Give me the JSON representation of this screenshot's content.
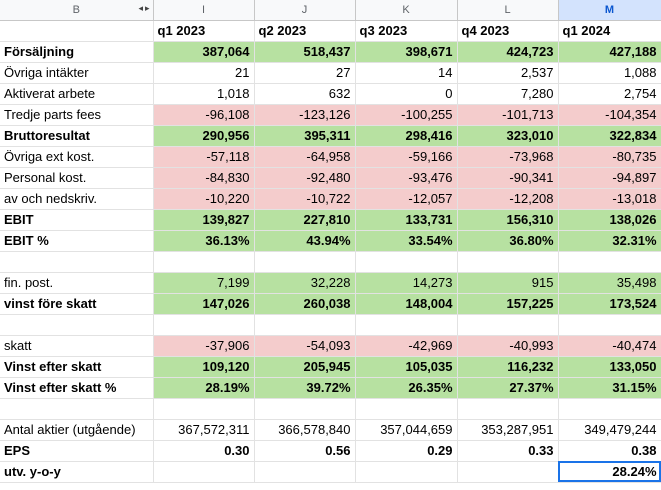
{
  "columns": [
    "B",
    "I",
    "J",
    "K",
    "L",
    "M"
  ],
  "quarters": [
    "q1 2023",
    "q2 2023",
    "q3 2023",
    "q4 2023",
    "q1 2024"
  ],
  "rows": [
    {
      "label": "Försäljning",
      "bold": true,
      "fill": "green",
      "values": [
        "387,064",
        "518,437",
        "398,671",
        "424,723",
        "427,188"
      ]
    },
    {
      "label": "Övriga intäkter",
      "bold": false,
      "fill": "none",
      "values": [
        "21",
        "27",
        "14",
        "2,537",
        "1,088"
      ]
    },
    {
      "label": "Aktiverat arbete",
      "bold": false,
      "fill": "none",
      "values": [
        "1,018",
        "632",
        "0",
        "7,280",
        "2,754"
      ]
    },
    {
      "label": "Tredje parts fees",
      "bold": false,
      "fill": "red",
      "values": [
        "-96,108",
        "-123,126",
        "-100,255",
        "-101,713",
        "-104,354"
      ]
    },
    {
      "label": "Bruttoresultat",
      "bold": true,
      "fill": "green",
      "values": [
        "290,956",
        "395,311",
        "298,416",
        "323,010",
        "322,834"
      ]
    },
    {
      "label": "Övriga ext kost.",
      "bold": false,
      "fill": "red",
      "values": [
        "-57,118",
        "-64,958",
        "-59,166",
        "-73,968",
        "-80,735"
      ]
    },
    {
      "label": "Personal kost.",
      "bold": false,
      "fill": "red",
      "values": [
        "-84,830",
        "-92,480",
        "-93,476",
        "-90,341",
        "-94,897"
      ]
    },
    {
      "label": "av och nedskriv.",
      "bold": false,
      "fill": "red",
      "values": [
        "-10,220",
        "-10,722",
        "-12,057",
        "-12,208",
        "-13,018"
      ]
    },
    {
      "label": "EBIT",
      "bold": true,
      "fill": "green",
      "values": [
        "139,827",
        "227,810",
        "133,731",
        "156,310",
        "138,026"
      ]
    },
    {
      "label": "EBIT %",
      "bold": true,
      "fill": "green",
      "values": [
        "36.13%",
        "43.94%",
        "33.54%",
        "36.80%",
        "32.31%"
      ]
    },
    {
      "label": "",
      "bold": false,
      "fill": "none",
      "values": [
        "",
        "",
        "",
        "",
        ""
      ]
    },
    {
      "label": "fin. post.",
      "bold": false,
      "fill": "green",
      "values": [
        "7,199",
        "32,228",
        "14,273",
        "915",
        "35,498"
      ]
    },
    {
      "label": "vinst före skatt",
      "bold": true,
      "fill": "green",
      "values": [
        "147,026",
        "260,038",
        "148,004",
        "157,225",
        "173,524"
      ]
    },
    {
      "label": "",
      "bold": false,
      "fill": "none",
      "values": [
        "",
        "",
        "",
        "",
        ""
      ]
    },
    {
      "label": "skatt",
      "bold": false,
      "fill": "red",
      "values": [
        "-37,906",
        "-54,093",
        "-42,969",
        "-40,993",
        "-40,474"
      ]
    },
    {
      "label": "Vinst efter skatt",
      "bold": true,
      "fill": "green",
      "values": [
        "109,120",
        "205,945",
        "105,035",
        "116,232",
        "133,050"
      ]
    },
    {
      "label": "Vinst efter skatt %",
      "bold": true,
      "fill": "green",
      "values": [
        "28.19%",
        "39.72%",
        "26.35%",
        "27.37%",
        "31.15%"
      ]
    },
    {
      "label": "",
      "bold": false,
      "fill": "none",
      "values": [
        "",
        "",
        "",
        "",
        ""
      ]
    },
    {
      "label": "Antal aktier (utgående)",
      "bold": false,
      "fill": "none",
      "values": [
        "367,572,311",
        "366,578,840",
        "357,044,659",
        "353,287,951",
        "349,479,244"
      ]
    },
    {
      "label": "EPS",
      "bold": true,
      "fill": "none",
      "values": [
        "0.30",
        "0.56",
        "0.29",
        "0.33",
        "0.38"
      ]
    },
    {
      "label": "utv. y-o-y",
      "bold": true,
      "fill": "none",
      "values": [
        "",
        "",
        "",
        "",
        "28.24%"
      ],
      "selected_col": 4
    }
  ],
  "colors": {
    "green": "#b7e1a1",
    "red": "#f4cccc",
    "selection": "#1a73e8"
  }
}
